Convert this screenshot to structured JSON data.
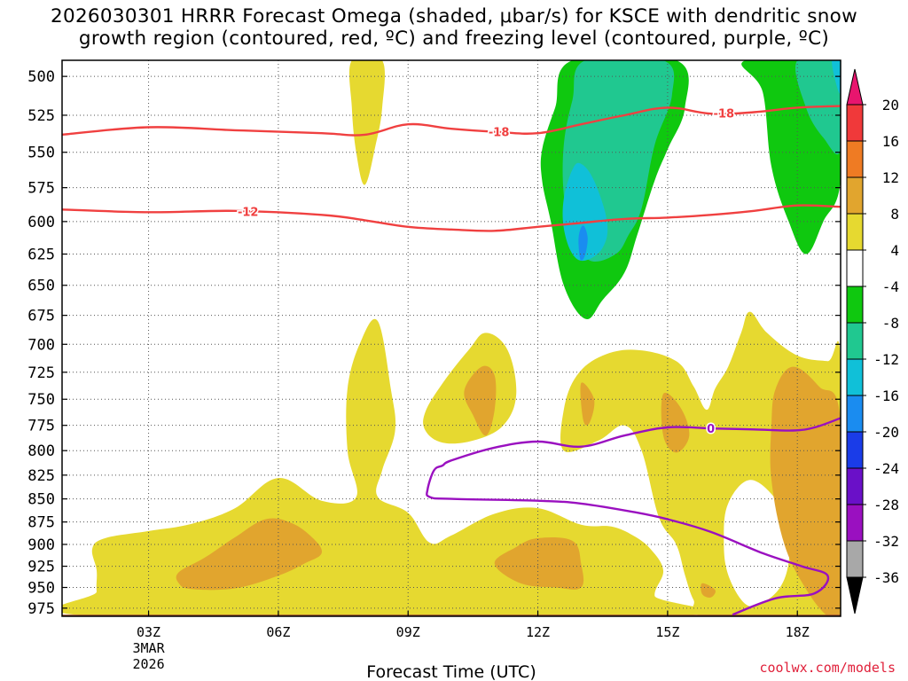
{
  "title": {
    "line1": "2026030301 HRRR Forecast Omega (shaded, μbar/s) for KSCE with dendritic snow",
    "line2": "growth region (contoured, red, ºC) and freezing level (contoured, purple, ºC)"
  },
  "credit": "coolwx.com/models",
  "chart_data": {
    "type": "heatmap",
    "title": "2026030301 HRRR Forecast Omega (shaded, μbar/s) for KSCE with dendritic snow growth region (contoured, red, ºC) and freezing level (contoured, purple, ºC)",
    "xlabel": "Forecast Time (UTC)",
    "ylabel": "",
    "x_range_hours": [
      1,
      19
    ],
    "y_range_mb": [
      490,
      985
    ],
    "y_scale": "log-pressure",
    "y_ticks": [
      500,
      525,
      550,
      575,
      600,
      625,
      650,
      675,
      700,
      725,
      750,
      775,
      800,
      825,
      850,
      875,
      900,
      925,
      950,
      975
    ],
    "x_ticks": [
      {
        "hour": 3,
        "label": "03Z",
        "sub1": "3MAR",
        "sub2": "2026"
      },
      {
        "hour": 6,
        "label": "06Z",
        "sub1": "",
        "sub2": ""
      },
      {
        "hour": 9,
        "label": "09Z",
        "sub1": "",
        "sub2": ""
      },
      {
        "hour": 12,
        "label": "12Z",
        "sub1": "",
        "sub2": ""
      },
      {
        "hour": 15,
        "label": "15Z",
        "sub1": "",
        "sub2": ""
      },
      {
        "hour": 18,
        "label": "18Z",
        "sub1": "",
        "sub2": ""
      }
    ],
    "grid": "dotted",
    "colorbar": {
      "labels": [
        "20",
        "16",
        "12",
        "8",
        "4",
        "-4",
        "-8",
        "-12",
        "-16",
        "-20",
        "-24",
        "-28",
        "-32",
        "-36"
      ],
      "colors": [
        "#e8156e",
        "#f0393a",
        "#ef7b23",
        "#e1a52e",
        "#e6d930",
        "#ffffff",
        "#0fc80f",
        "#20c890",
        "#10c0d8",
        "#1a8cf0",
        "#1a3ce8",
        "#6a10c8",
        "#9a10c0",
        "#a8a8a8",
        "#000000"
      ]
    },
    "colors": {
      "omega_4_8": "#e6d930",
      "omega_8_12": "#e1a52e",
      "omega_12_16": "#ef7b23",
      "omega_m4_m8": "#0fc80f",
      "omega_m8_m12": "#20c890",
      "omega_m12_m16": "#10c0d8",
      "omega_m16_m20": "#1a8cf0",
      "ground": "#a0522d",
      "dendritic_contour": "#f04040",
      "freezing_contour": "#9a10c0"
    },
    "contours": [
      {
        "name": "dendritic -18",
        "label": "-18",
        "color": "red",
        "points": [
          [
            1,
            538
          ],
          [
            3,
            533
          ],
          [
            5,
            535
          ],
          [
            7,
            537
          ],
          [
            8,
            538
          ],
          [
            9,
            531
          ],
          [
            10,
            534
          ],
          [
            11,
            536
          ],
          [
            12,
            537
          ],
          [
            13,
            531
          ],
          [
            14,
            525
          ],
          [
            15,
            520
          ],
          [
            16,
            524
          ],
          [
            17,
            523
          ],
          [
            18,
            520
          ],
          [
            19,
            519
          ]
        ],
        "label_hours": [
          11.1,
          16.3
        ]
      },
      {
        "name": "dendritic -12",
        "label": "-12",
        "color": "red",
        "points": [
          [
            1,
            591
          ],
          [
            3,
            593
          ],
          [
            5,
            592
          ],
          [
            7,
            595
          ],
          [
            8,
            599
          ],
          [
            9,
            604
          ],
          [
            10,
            606
          ],
          [
            11,
            607
          ],
          [
            12,
            604
          ],
          [
            13,
            601
          ],
          [
            14,
            598
          ],
          [
            15,
            597
          ],
          [
            16,
            595
          ],
          [
            17,
            592
          ],
          [
            18,
            588
          ],
          [
            19,
            589
          ]
        ],
        "label_hours": [
          5.3
        ]
      },
      {
        "name": "freezing level 0",
        "label": "0",
        "color": "purple",
        "points": [
          [
            16.5,
            983
          ],
          [
            17.5,
            963
          ],
          [
            18.4,
            957
          ],
          [
            18.7,
            936
          ],
          [
            18.1,
            925
          ],
          [
            17.2,
            910
          ],
          [
            16,
            886
          ],
          [
            15,
            872
          ],
          [
            14.2,
            864
          ],
          [
            13,
            855
          ],
          [
            12,
            852
          ],
          [
            10,
            850
          ],
          [
            9.5,
            848
          ],
          [
            9.45,
            840
          ],
          [
            9.6,
            820
          ],
          [
            9.8,
            815
          ],
          [
            10,
            810
          ],
          [
            11,
            797
          ],
          [
            12,
            791
          ],
          [
            13,
            796
          ],
          [
            14,
            785
          ],
          [
            15,
            777
          ],
          [
            16,
            778
          ],
          [
            17,
            779
          ],
          [
            17.9,
            780
          ],
          [
            18.4,
            777
          ],
          [
            19,
            768
          ]
        ],
        "label_hours": [
          16
        ]
      }
    ],
    "omega_regions": [
      {
        "name": "yellow top column",
        "range": "4 to 8",
        "points": [
          [
            7.7,
            490
          ],
          [
            8.4,
            490
          ],
          [
            8.4,
            520
          ],
          [
            8.25,
            545
          ],
          [
            8,
            573
          ],
          [
            7.8,
            550
          ],
          [
            7.7,
            520
          ]
        ]
      },
      {
        "name": "yellow low-level",
        "range": "4 to 8",
        "points": [
          [
            2,
            893
          ],
          [
            3,
            885
          ],
          [
            4,
            877
          ],
          [
            5,
            860
          ],
          [
            6,
            828
          ],
          [
            7,
            852
          ],
          [
            7.8,
            848
          ],
          [
            7.6,
            800
          ],
          [
            7.6,
            740
          ],
          [
            7.9,
            698
          ],
          [
            8.3,
            680
          ],
          [
            8.6,
            740
          ],
          [
            8.7,
            780
          ],
          [
            8.4,
            820
          ],
          [
            8.3,
            848
          ],
          [
            9,
            865
          ],
          [
            9.5,
            898
          ],
          [
            10,
            890
          ],
          [
            11,
            866
          ],
          [
            12,
            860
          ],
          [
            13,
            878
          ],
          [
            13.7,
            880
          ],
          [
            14.2,
            890
          ],
          [
            14.6,
            905
          ],
          [
            14.9,
            930
          ],
          [
            14.7,
            960
          ],
          [
            15,
            985
          ],
          [
            1.9,
            985
          ],
          [
            1.8,
            955
          ],
          [
            1.8,
            930
          ],
          [
            1.7,
            905
          ]
        ]
      },
      {
        "name": "yellow mid-level bubble",
        "range": "4 to 8",
        "points": [
          [
            9.4,
            762
          ],
          [
            9.8,
            735
          ],
          [
            10.4,
            705
          ],
          [
            10.8,
            690
          ],
          [
            11.3,
            705
          ],
          [
            11.5,
            745
          ],
          [
            11.2,
            775
          ],
          [
            10.5,
            790
          ],
          [
            9.8,
            792
          ],
          [
            9.4,
            780
          ]
        ]
      },
      {
        "name": "yellow right section",
        "range": "4 to 8",
        "points": [
          [
            12.6,
            760
          ],
          [
            12.9,
            728
          ],
          [
            13.5,
            710
          ],
          [
            14.3,
            705
          ],
          [
            15.2,
            715
          ],
          [
            15.6,
            738
          ],
          [
            15.9,
            760
          ],
          [
            16.1,
            740
          ],
          [
            16.4,
            720
          ],
          [
            16.7,
            690
          ],
          [
            16.9,
            672
          ],
          [
            17.3,
            690
          ],
          [
            18,
            710
          ],
          [
            18.7,
            715
          ],
          [
            19,
            715
          ],
          [
            19,
            985
          ],
          [
            15.9,
            985
          ],
          [
            15.6,
            965
          ],
          [
            15.4,
            935
          ],
          [
            15.2,
            900
          ],
          [
            14.8,
            870
          ],
          [
            14.4,
            800
          ],
          [
            14,
            775
          ],
          [
            13.4,
            790
          ],
          [
            12.6,
            800
          ]
        ]
      },
      {
        "name": "white hole",
        "range": "-4 to 4",
        "points": [
          [
            16.4,
            855
          ],
          [
            16.9,
            830
          ],
          [
            17.5,
            850
          ],
          [
            17.8,
            880
          ],
          [
            17.8,
            920
          ],
          [
            17.6,
            950
          ],
          [
            17.2,
            968
          ],
          [
            16.8,
            970
          ],
          [
            16.4,
            935
          ],
          [
            16.3,
            895
          ]
        ]
      },
      {
        "name": "orange lower-left",
        "range": "8 to 12",
        "points": [
          [
            3.7,
            932
          ],
          [
            4.3,
            915
          ],
          [
            5,
            892
          ],
          [
            5.7,
            872
          ],
          [
            6.3,
            876
          ],
          [
            6.8,
            893
          ],
          [
            7,
            910
          ],
          [
            6.6,
            922
          ],
          [
            6,
            936
          ],
          [
            5,
            951
          ],
          [
            4,
            952
          ],
          [
            3.7,
            945
          ]
        ]
      },
      {
        "name": "orange mid bubble",
        "range": "8 to 12",
        "points": [
          [
            10.3,
            742
          ],
          [
            10.7,
            720
          ],
          [
            11,
            728
          ],
          [
            11,
            760
          ],
          [
            10.8,
            785
          ],
          [
            10.5,
            765
          ]
        ]
      },
      {
        "name": "orange lower-center",
        "range": "8 to 12",
        "points": [
          [
            11,
            922
          ],
          [
            11.5,
            903
          ],
          [
            12,
            893
          ],
          [
            12.8,
            896
          ],
          [
            13,
            922
          ],
          [
            13,
            950
          ],
          [
            12.4,
            950
          ],
          [
            11.6,
            945
          ]
        ]
      },
      {
        "name": "orange small A",
        "range": "8 to 12",
        "points": [
          [
            13,
            735
          ],
          [
            13.3,
            750
          ],
          [
            13.2,
            772
          ],
          [
            13.05,
            770
          ]
        ]
      },
      {
        "name": "orange small B",
        "range": "8 to 12",
        "points": [
          [
            14.9,
            745
          ],
          [
            15.3,
            758
          ],
          [
            15.5,
            785
          ],
          [
            15.2,
            802
          ],
          [
            14.9,
            785
          ]
        ]
      },
      {
        "name": "orange small C",
        "range": "8 to 12",
        "points": [
          [
            15.8,
            945
          ],
          [
            16.1,
            953
          ],
          [
            16,
            962
          ],
          [
            15.8,
            958
          ]
        ]
      },
      {
        "name": "orange right band",
        "range": "8 to 12",
        "points": [
          [
            17.5,
            740
          ],
          [
            17.9,
            720
          ],
          [
            18.5,
            738
          ],
          [
            19,
            770
          ],
          [
            19,
            985
          ],
          [
            18.7,
            985
          ],
          [
            18.2,
            952
          ],
          [
            17.7,
            900
          ],
          [
            17.4,
            830
          ],
          [
            17.4,
            775
          ]
        ]
      },
      {
        "name": "green top-right column",
        "range": "-4 to -8",
        "points": [
          [
            12.1,
            548
          ],
          [
            12.4,
            520
          ],
          [
            12.8,
            490
          ],
          [
            15.2,
            490
          ],
          [
            15.4,
            520
          ],
          [
            15,
            548
          ],
          [
            14.7,
            570
          ],
          [
            14.3,
            610
          ],
          [
            14,
            640
          ],
          [
            13.5,
            662
          ],
          [
            13.1,
            678
          ],
          [
            12.6,
            650
          ],
          [
            12.3,
            600
          ],
          [
            12.1,
            570
          ]
        ]
      },
      {
        "name": "green top-right far",
        "range": "-4 to -8",
        "points": [
          [
            16.8,
            490
          ],
          [
            19,
            490
          ],
          [
            19,
            570
          ],
          [
            18.6,
            600
          ],
          [
            18.2,
            625
          ],
          [
            17.8,
            600
          ],
          [
            17.4,
            560
          ],
          [
            17.2,
            510
          ]
        ]
      },
      {
        "name": "teal in column",
        "range": "-8 to -12",
        "points": [
          [
            12.6,
            545
          ],
          [
            12.8,
            515
          ],
          [
            13.1,
            490
          ],
          [
            14.9,
            490
          ],
          [
            15.1,
            512
          ],
          [
            14.7,
            545
          ],
          [
            14.4,
            590
          ],
          [
            14.1,
            610
          ],
          [
            13.8,
            625
          ],
          [
            13.2,
            630
          ],
          [
            12.8,
            610
          ],
          [
            12.6,
            580
          ]
        ]
      },
      {
        "name": "teal top-right far",
        "range": "-8 to -12",
        "points": [
          [
            18,
            490
          ],
          [
            19,
            490
          ],
          [
            19,
            548
          ],
          [
            18.6,
            540
          ],
          [
            18.2,
            520
          ]
        ]
      },
      {
        "name": "cyan core",
        "range": "-12 to -16",
        "points": [
          [
            12.6,
            583
          ],
          [
            12.8,
            562
          ],
          [
            13,
            558
          ],
          [
            13.3,
            570
          ],
          [
            13.6,
            600
          ],
          [
            13.5,
            620
          ],
          [
            13.1,
            630
          ],
          [
            12.8,
            625
          ],
          [
            12.6,
            605
          ]
        ]
      },
      {
        "name": "cyan top-right",
        "range": "-12 to -16",
        "points": [
          [
            18.8,
            490
          ],
          [
            19,
            490
          ],
          [
            19,
            510
          ],
          [
            18.9,
            505
          ]
        ]
      },
      {
        "name": "blue core",
        "range": "-16 to -20",
        "points": [
          [
            12.95,
            610
          ],
          [
            13.05,
            603
          ],
          [
            13.15,
            612
          ],
          [
            13.1,
            625
          ],
          [
            13,
            630
          ],
          [
            12.95,
            622
          ]
        ]
      }
    ],
    "ground_level_mb": 983
  }
}
